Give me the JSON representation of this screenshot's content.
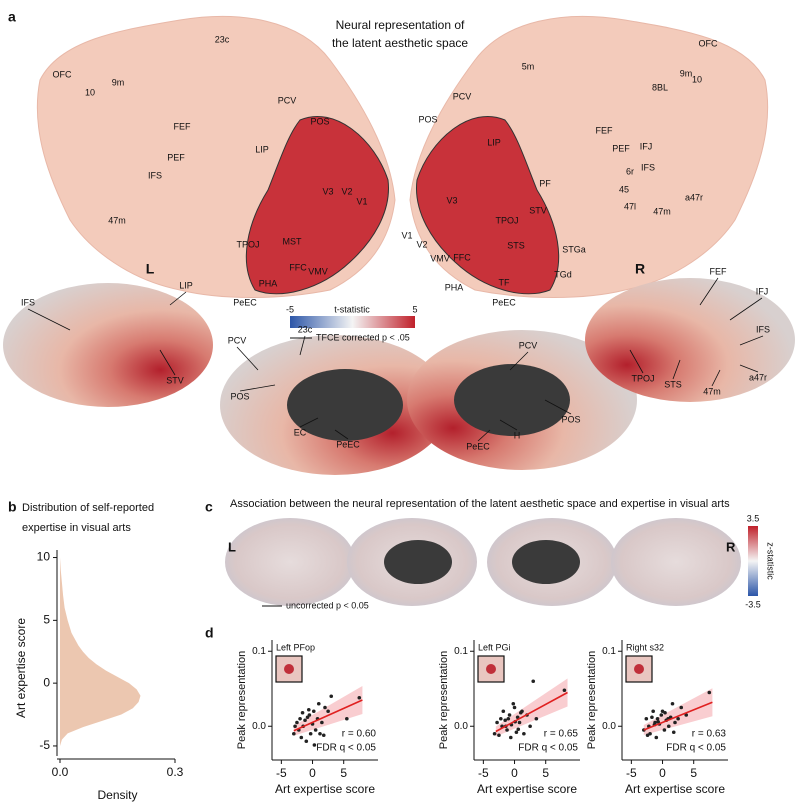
{
  "panels": {
    "a": {
      "label": "a",
      "title": [
        "Neural representation of",
        "the latent aesthetic space"
      ],
      "left_flatmap_labels": [
        "23c",
        "OFC",
        "9m",
        "10",
        "PCV",
        "POS",
        "FEF",
        "LIP",
        "PEF",
        "IFS",
        "V3",
        "V2",
        "V1",
        "MST",
        "TPOJ",
        "47m",
        "FFC",
        "VMV",
        "PHA",
        "PeEC"
      ],
      "right_flatmap_labels": [
        "5m",
        "OFC",
        "9m",
        "10",
        "8BL",
        "PCV",
        "POS",
        "LIP",
        "FEF",
        "PEF",
        "IFJ",
        "6r",
        "IFS",
        "45",
        "47l",
        "47m",
        "a47r",
        "PF",
        "STV",
        "V3",
        "TPOJ",
        "V1",
        "V2",
        "VMV",
        "FFC",
        "STS",
        "STGa",
        "PHA",
        "TF",
        "TGd",
        "PeEC"
      ],
      "hemispheres": [
        "L",
        "R"
      ],
      "colorbar": {
        "title": "t-statistic",
        "ticks": [
          -5,
          5
        ]
      },
      "legend": "TFCE corrected p < .05",
      "surface_labels": [
        "IFS",
        "LIP",
        "STV",
        "PCV",
        "23c",
        "POS",
        "EC",
        "PeEC",
        "PCV",
        "POS",
        "H",
        "PeEC",
        "FEF",
        "IFJ",
        "IFS",
        "TPOJ",
        "STS",
        "a47r",
        "47m"
      ]
    },
    "b": {
      "label": "b",
      "title": [
        "Distribution of self-reported",
        "expertise in visual arts"
      ]
    },
    "c": {
      "label": "c",
      "title": "Association between the neural representation of the latent aesthetic space and expertise in visual arts",
      "hemispheres": [
        "L",
        "R"
      ],
      "colorbar": {
        "title": "z-statistic",
        "ticks": [
          3.5,
          -3.5
        ]
      },
      "legend": "uncorrected p < 0.05"
    },
    "d": {
      "label": "d"
    }
  },
  "chart_data": [
    {
      "type": "density",
      "xlabel": "Density",
      "ylabel": "Art expertise score",
      "color": "#ecc7b0",
      "y": [
        -5,
        -4.5,
        -4,
        -3.5,
        -3,
        -2.5,
        -2,
        -1.5,
        -1,
        -0.5,
        0,
        0.5,
        1,
        1.5,
        2,
        2.5,
        3,
        4,
        5,
        6,
        7,
        8,
        9,
        10
      ],
      "values": [
        0,
        0.005,
        0.02,
        0.06,
        0.11,
        0.16,
        0.19,
        0.205,
        0.21,
        0.2,
        0.18,
        0.15,
        0.12,
        0.095,
        0.075,
        0.06,
        0.048,
        0.03,
        0.02,
        0.012,
        0.008,
        0.005,
        0.002,
        0
      ],
      "xlim": [
        0,
        0.3
      ],
      "xticks": [
        {
          "value": 0,
          "label": "0.0"
        },
        0.3
      ],
      "ylim": [
        -5.8,
        10.6
      ],
      "yticks": [
        -5,
        0,
        5,
        10
      ]
    },
    {
      "type": "scatter",
      "inset": "Left PFop",
      "r": "r = 0.60",
      "q": "FDR q < 0.05",
      "xlabel": "Art expertise score",
      "ylabel": "Peak representation",
      "color": "#222222",
      "fit_color": "#e02020",
      "x": [
        -3,
        -2.5,
        -2.2,
        -2,
        -1.8,
        -1.5,
        -1.2,
        -1,
        -0.8,
        -0.5,
        -0.3,
        0,
        0.2,
        0.5,
        0.8,
        1,
        1.2,
        1.5,
        2,
        2.5,
        3,
        -2.8,
        -1.6,
        0.3,
        5.5,
        7.5,
        -0.6,
        1.8
      ],
      "values": [
        -0.01,
        0.005,
        -0.005,
        0.01,
        -0.015,
        0,
        0.008,
        -0.02,
        0.012,
        0.015,
        -0.01,
        0.003,
        0.02,
        -0.005,
        0.01,
        0.03,
        -0.01,
        0.005,
        0.025,
        0.02,
        0.04,
        0.0,
        0.018,
        -0.025,
        0.01,
        0.038,
        0.022,
        -0.012
      ],
      "fit": {
        "x": [
          -3,
          8
        ],
        "y": [
          -0.006,
          0.035
        ]
      },
      "xlim": [
        -6.5,
        10.5
      ],
      "xticks": [
        -5,
        0,
        5
      ],
      "ylim": [
        -0.045,
        0.115
      ],
      "yticks": [
        {
          "value": 0,
          "label": "0.0"
        },
        0.1
      ]
    },
    {
      "type": "scatter",
      "inset": "Left PGi",
      "r": "r = 0.65",
      "q": "FDR q < 0.05",
      "xlabel": "Art expertise score",
      "ylabel": "Peak representation",
      "color": "#222222",
      "fit_color": "#e02020",
      "x": [
        -3.2,
        -2.8,
        -2.5,
        -2,
        -1.8,
        -1.5,
        -1.2,
        -1,
        -0.8,
        -0.5,
        -0.2,
        0,
        0.3,
        0.5,
        0.8,
        1,
        1.5,
        2,
        2.5,
        3,
        -2.2,
        -0.6,
        0.1,
        1.2,
        3.5,
        8,
        -1.4,
        0.6
      ],
      "values": [
        -0.01,
        0.005,
        -0.012,
        0.0,
        0.02,
        0.008,
        -0.005,
        0.01,
        0.015,
        0.002,
        0.03,
        0.025,
        -0.008,
        0.012,
        0.005,
        0.018,
        -0.01,
        0.015,
        0.0,
        0.06,
        0.01,
        -0.015,
        0.006,
        0.02,
        0.01,
        0.048,
        0.0,
        -0.004
      ],
      "fit": {
        "x": [
          -3,
          8.5
        ],
        "y": [
          -0.007,
          0.045
        ]
      },
      "xlim": [
        -6.5,
        10.5
      ],
      "xticks": [
        -5,
        0,
        5
      ],
      "ylim": [
        -0.045,
        0.115
      ],
      "yticks": [
        {
          "value": 0,
          "label": "0.0"
        },
        0.1
      ]
    },
    {
      "type": "scatter",
      "inset": "Right s32",
      "r": "r = 0.63",
      "q": "FDR q < 0.05",
      "xlabel": "Art expertise score",
      "ylabel": "Peak representation",
      "color": "#222222",
      "fit_color": "#e02020",
      "x": [
        -3,
        -2.6,
        -2.2,
        -2,
        -1.7,
        -1.5,
        -1.2,
        -1,
        -0.8,
        -0.5,
        -0.2,
        0,
        0.3,
        0.6,
        1,
        1.3,
        1.6,
        2,
        2.5,
        3,
        -2.4,
        -0.7,
        0.4,
        1.8,
        3.8,
        7.5,
        -1.3,
        0.9
      ],
      "values": [
        -0.005,
        0.01,
        0.0,
        -0.01,
        0.012,
        0.02,
        0.005,
        -0.015,
        0.01,
        0.003,
        0.015,
        0.02,
        -0.005,
        0.008,
        0.0,
        0.012,
        0.03,
        0.005,
        0.01,
        0.025,
        -0.012,
        0.006,
        0.018,
        -0.008,
        0.015,
        0.045,
        0.002,
        0.01
      ],
      "fit": {
        "x": [
          -3,
          8
        ],
        "y": [
          -0.005,
          0.032
        ]
      },
      "xlim": [
        -6.5,
        10.5
      ],
      "xticks": [
        -5,
        0,
        5
      ],
      "ylim": [
        -0.045,
        0.115
      ],
      "yticks": [
        {
          "value": 0,
          "label": "0.0"
        },
        0.1
      ]
    }
  ]
}
